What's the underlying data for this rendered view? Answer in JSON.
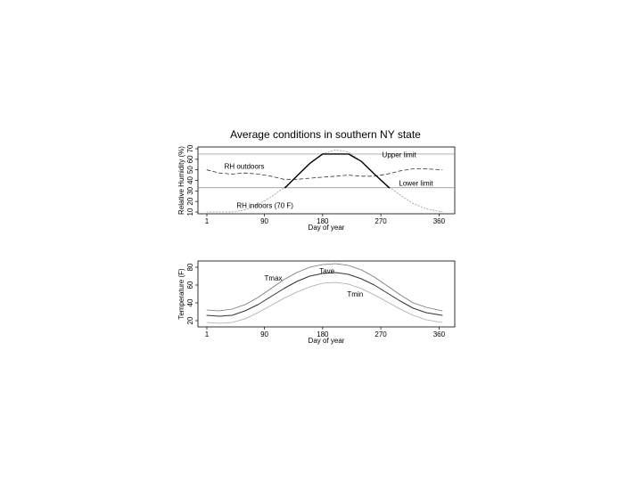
{
  "figure": {
    "title": "Average conditions in southern NY state"
  },
  "chart_data": [
    {
      "type": "line",
      "xlabel": "Day of year",
      "ylabel": "Relative Humidity (%)",
      "xlim": [
        1,
        365
      ],
      "ylim": [
        10,
        70
      ],
      "xticks": [
        1,
        90,
        180,
        270,
        360
      ],
      "yticks": [
        10,
        20,
        30,
        40,
        50,
        60,
        70
      ],
      "hlines": [
        {
          "label": "Upper limit",
          "y": 65
        },
        {
          "label": "Lower limit",
          "y": 33
        }
      ],
      "series": [
        {
          "name": "RH outdoors",
          "style": "dashed",
          "x": [
            1,
            20,
            40,
            60,
            80,
            100,
            120,
            140,
            160,
            180,
            200,
            220,
            240,
            260,
            280,
            300,
            320,
            340,
            365
          ],
          "y": [
            50,
            47,
            46,
            47,
            46,
            44,
            41,
            41,
            42,
            43,
            44,
            45,
            44,
            44,
            46,
            49,
            51,
            51,
            50
          ]
        },
        {
          "name": "RH indoors (70 F)",
          "style": "dotted",
          "x": [
            1,
            20,
            40,
            60,
            80,
            100,
            120,
            140,
            160,
            180,
            200,
            220,
            240,
            260,
            280,
            300,
            320,
            340,
            365
          ],
          "y": [
            10,
            10,
            10,
            12,
            17,
            24,
            33,
            44,
            56,
            65,
            69,
            67,
            58,
            46,
            35,
            26,
            18,
            13,
            10
          ]
        },
        {
          "name": "",
          "style": "solid-bold",
          "x": [
            122,
            140,
            160,
            180,
            200,
            220,
            240,
            260,
            283
          ],
          "y": [
            33,
            44,
            56,
            65,
            65,
            65,
            58,
            46,
            33
          ]
        }
      ],
      "annotations": [
        {
          "text": "RH outdoors",
          "x": 28,
          "y": 51
        },
        {
          "text": "RH indoors (70 F)",
          "x": 47,
          "y": 14
        },
        {
          "text": "Upper limit",
          "x": 272,
          "y": 62
        },
        {
          "text": "Lower limit",
          "x": 298,
          "y": 35
        }
      ]
    },
    {
      "type": "line",
      "xlabel": "Day of year",
      "ylabel": "Temperature (F)",
      "xlim": [
        1,
        365
      ],
      "ylim": [
        15,
        85
      ],
      "xticks": [
        1,
        90,
        180,
        270,
        360
      ],
      "yticks": [
        20,
        40,
        60,
        80
      ],
      "series": [
        {
          "name": "Tmax",
          "style": "thin-gray",
          "x": [
            1,
            20,
            40,
            60,
            80,
            100,
            120,
            140,
            160,
            180,
            200,
            220,
            240,
            260,
            280,
            300,
            320,
            340,
            365
          ],
          "y": [
            32,
            31,
            33,
            38,
            46,
            56,
            66,
            74,
            80,
            83,
            84,
            82,
            77,
            69,
            59,
            49,
            40,
            35,
            31
          ]
        },
        {
          "name": "Tave",
          "style": "dark",
          "x": [
            1,
            20,
            40,
            60,
            80,
            100,
            120,
            140,
            160,
            180,
            200,
            220,
            240,
            260,
            280,
            300,
            320,
            340,
            365
          ],
          "y": [
            26,
            25,
            26,
            31,
            38,
            47,
            56,
            64,
            70,
            73,
            74,
            72,
            67,
            60,
            51,
            42,
            34,
            29,
            26
          ]
        },
        {
          "name": "Tmin",
          "style": "light-gray",
          "x": [
            1,
            20,
            40,
            60,
            80,
            100,
            120,
            140,
            160,
            180,
            200,
            220,
            240,
            260,
            280,
            300,
            320,
            340,
            365
          ],
          "y": [
            18,
            17,
            18,
            22,
            29,
            37,
            45,
            52,
            58,
            62,
            63,
            61,
            56,
            49,
            41,
            33,
            26,
            21,
            18
          ]
        }
      ],
      "annotations": [
        {
          "text": "Tmax",
          "x": 90,
          "y": 65
        },
        {
          "text": "Tave",
          "x": 175,
          "y": 73
        },
        {
          "text": "Tmin",
          "x": 218,
          "y": 47
        }
      ]
    }
  ]
}
